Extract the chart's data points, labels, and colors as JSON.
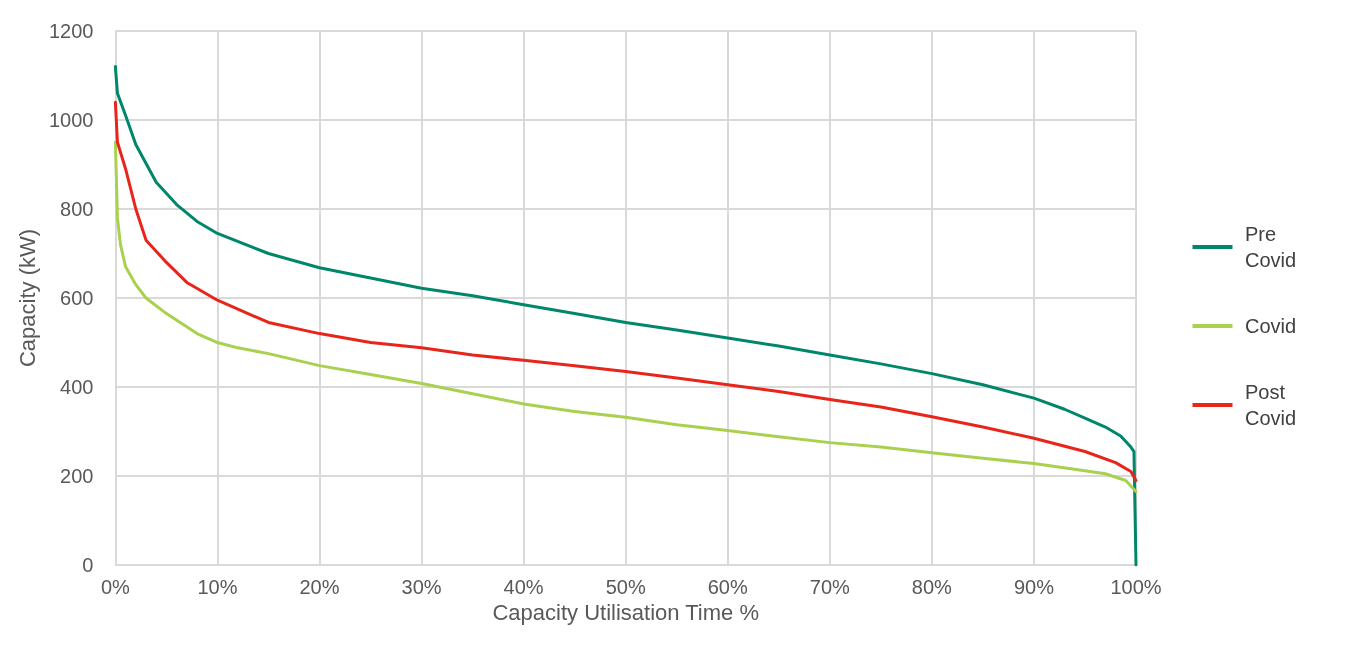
{
  "chart_data": {
    "type": "line",
    "xlabel": "Capacity Utilisation Time %",
    "ylabel": "Capacity (kW)",
    "xlim": [
      0,
      100
    ],
    "xticks": [
      {
        "value": 0,
        "label": "0%"
      },
      {
        "value": 10,
        "label": "10%"
      },
      {
        "value": 20,
        "label": "20%"
      },
      {
        "value": 30,
        "label": "30%"
      },
      {
        "value": 40,
        "label": "40%"
      },
      {
        "value": 50,
        "label": "50%"
      },
      {
        "value": 60,
        "label": "60%"
      },
      {
        "value": 70,
        "label": "70%"
      },
      {
        "value": 80,
        "label": "80%"
      },
      {
        "value": 90,
        "label": "90%"
      },
      {
        "value": 100,
        "label": "100%"
      }
    ],
    "ylim": [
      0,
      1200
    ],
    "yticks": [
      0,
      200,
      400,
      600,
      800,
      1000,
      1200
    ],
    "grid": true,
    "legend": "right",
    "marker": "none",
    "line_style": "solid",
    "series": [
      {
        "name": "Pre Covid",
        "color": "#00876a",
        "x": [
          0,
          0.2,
          1,
          2,
          4,
          6,
          8,
          10,
          15,
          20,
          25,
          30,
          35,
          40,
          45,
          50,
          55,
          60,
          65,
          70,
          75,
          80,
          85,
          90,
          93,
          95,
          97,
          98.5,
          99.5,
          99.8,
          100
        ],
        "values": [
          1120,
          1060,
          1010,
          945,
          860,
          810,
          772,
          745,
          700,
          668,
          645,
          622,
          605,
          585,
          565,
          545,
          528,
          510,
          492,
          472,
          452,
          430,
          405,
          375,
          350,
          330,
          310,
          290,
          265,
          255,
          0
        ]
      },
      {
        "name": "Covid",
        "color": "#a9d04f",
        "x": [
          0,
          0.2,
          0.5,
          1,
          2,
          3,
          5,
          8,
          10,
          12,
          15,
          20,
          25,
          30,
          35,
          40,
          45,
          50,
          55,
          60,
          65,
          70,
          75,
          80,
          85,
          90,
          95,
          97,
          99,
          100
        ],
        "values": [
          950,
          780,
          720,
          670,
          630,
          600,
          565,
          520,
          500,
          488,
          475,
          448,
          428,
          408,
          385,
          362,
          345,
          332,
          315,
          302,
          288,
          275,
          265,
          252,
          240,
          228,
          212,
          205,
          190,
          165
        ]
      },
      {
        "name": "Post Covid",
        "color": "#e8251b",
        "x": [
          0,
          0.2,
          1,
          2,
          3,
          5,
          7,
          10,
          15,
          20,
          25,
          30,
          35,
          40,
          45,
          50,
          55,
          60,
          65,
          70,
          75,
          80,
          85,
          90,
          95,
          98,
          99.5,
          100
        ],
        "values": [
          1040,
          950,
          890,
          800,
          730,
          680,
          635,
          595,
          545,
          520,
          500,
          488,
          472,
          460,
          448,
          435,
          420,
          405,
          390,
          372,
          355,
          333,
          310,
          285,
          255,
          230,
          210,
          190
        ]
      }
    ]
  }
}
